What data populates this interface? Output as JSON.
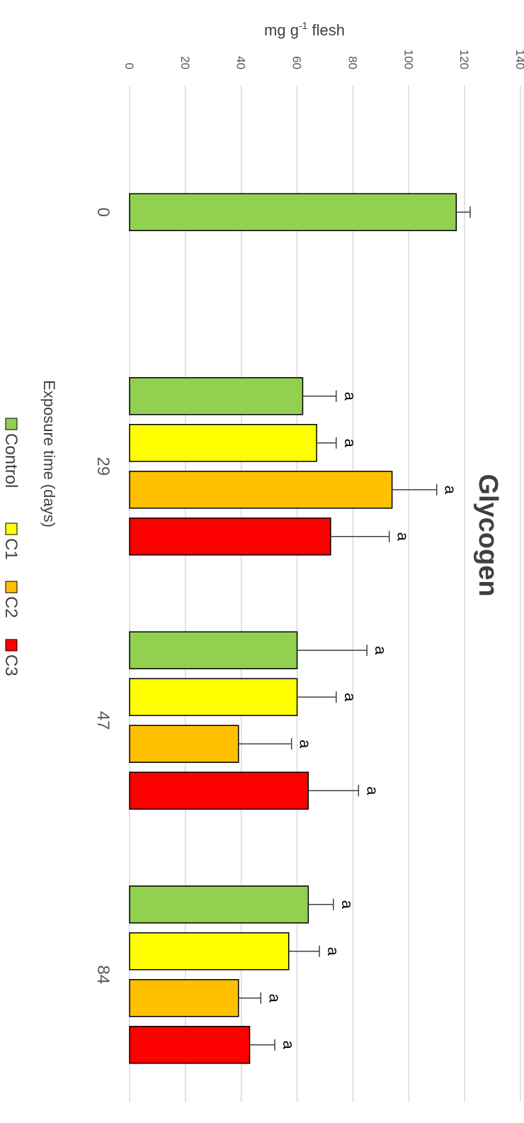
{
  "chart_data": {
    "type": "bar",
    "orientation": "rotated-90-clockwise",
    "title": "Glycogen",
    "xlabel": "Exposure time (days)",
    "ylabel": "mg g-1 flesh",
    "ylim": [
      0,
      140
    ],
    "yticks": [
      0,
      20,
      40,
      60,
      80,
      100,
      120,
      140
    ],
    "grid": true,
    "legend_position": "bottom",
    "categories": [
      "0",
      "29",
      "47",
      "84"
    ],
    "series": [
      {
        "name": "Control",
        "color": "#92d050",
        "values": [
          117,
          62,
          60,
          64
        ],
        "errors": [
          5,
          12,
          25,
          9
        ],
        "labels": [
          "",
          "a",
          "a",
          "a"
        ]
      },
      {
        "name": "C1",
        "color": "#ffff00",
        "values": [
          null,
          67,
          60,
          57
        ],
        "errors": [
          null,
          7,
          14,
          11
        ],
        "labels": [
          "",
          "a",
          "a",
          "a"
        ]
      },
      {
        "name": "C2",
        "color": "#ffc000",
        "values": [
          null,
          94,
          39,
          39
        ],
        "errors": [
          null,
          16,
          19,
          8
        ],
        "labels": [
          "",
          "a",
          "a",
          "a"
        ]
      },
      {
        "name": "C3",
        "color": "#ff0000",
        "values": [
          null,
          72,
          64,
          43
        ],
        "errors": [
          null,
          21,
          18,
          9
        ],
        "labels": [
          "",
          "a",
          "a",
          "a"
        ]
      }
    ]
  }
}
